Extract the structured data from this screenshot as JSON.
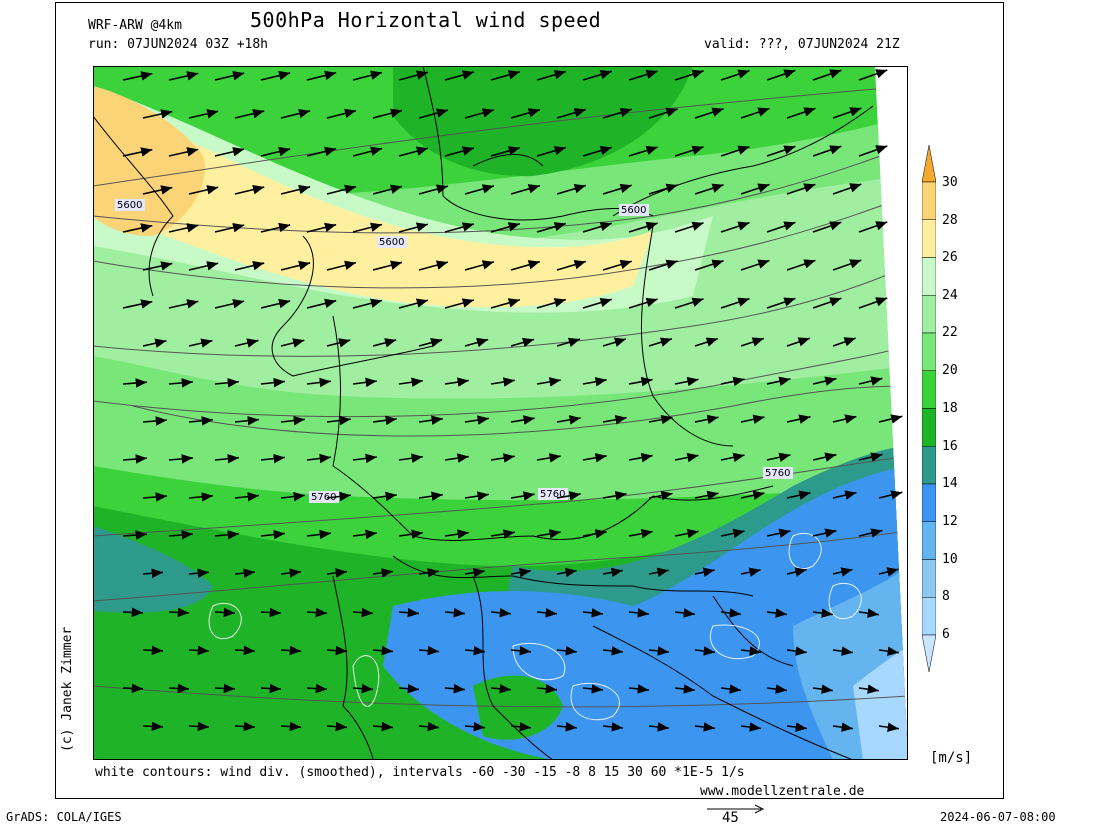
{
  "header": {
    "model": "WRF-ARW @4km",
    "title": "500hPa Horizontal wind speed",
    "run": "run: 07JUN2024 03Z +18h",
    "valid": "valid: ???, 07JUN2024 21Z"
  },
  "map": {
    "contour_labels": [
      "5600",
      "5600",
      "5600",
      "5760",
      "5760",
      "5760"
    ],
    "colors": {
      "blue_light": "#a8d8ff",
      "blue": "#3c96f0",
      "teal": "#2e9a8c",
      "green_dark": "#1fb428",
      "green": "#3cd23c",
      "green_mid": "#78e678",
      "green_light": "#a0eea0",
      "green_pale": "#c8fac8",
      "yellow": "#fff0a0",
      "orange": "#fcd478",
      "orange_dark": "#f4a830"
    }
  },
  "colorbar": {
    "ticks": [
      "30",
      "28",
      "26",
      "24",
      "22",
      "20",
      "18",
      "16",
      "14",
      "12",
      "10",
      "8",
      "6"
    ],
    "unit": "[m/s]",
    "colors": [
      "#f4a830",
      "#fcd478",
      "#fff0a0",
      "#c8fac8",
      "#a0eea0",
      "#78e678",
      "#3cd23c",
      "#1fb428",
      "#2e9a8c",
      "#3c96f0",
      "#64b4f0",
      "#8cc8f0",
      "#a8d8ff",
      "#c8e6ff"
    ]
  },
  "footer": {
    "contours_note": "white contours: wind div. (smoothed), intervals -60 -30 -15 -8 8 15 30 60 *1E-5 1/s",
    "website": "www.modellzentrale.de",
    "grads": "GrADS: COLA/IGES",
    "reference_vector": "45",
    "timestamp": "2024-06-07-08:00"
  },
  "credit": "(c) Janek Zimmer"
}
